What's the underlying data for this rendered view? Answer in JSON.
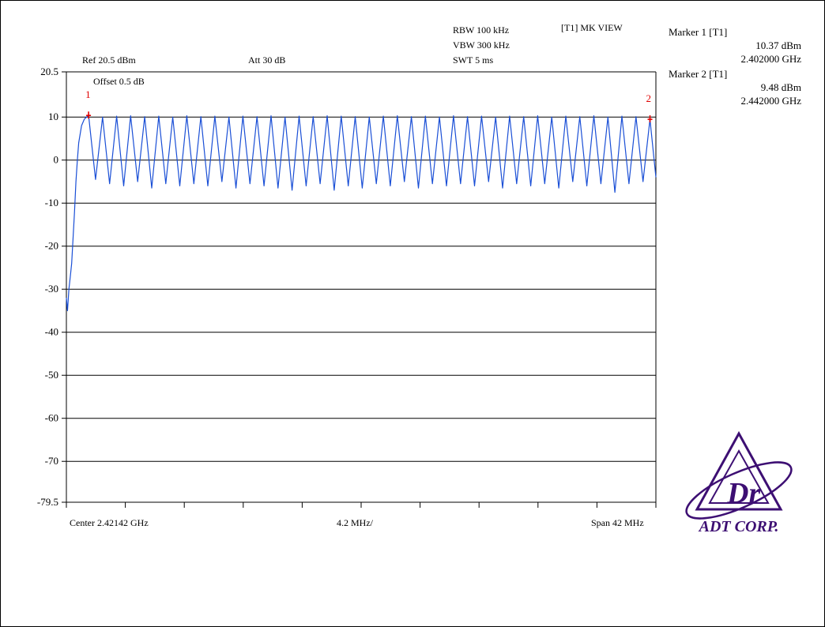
{
  "header": {
    "ref": "Ref 20.5 dBm",
    "att": "Att  30 dB",
    "rbw": "RBW 100 kHz",
    "vbw": "VBW 300 kHz",
    "swt": "SWT 5 ms",
    "mode": "[T1] MK VIEW",
    "offset": "Offset 0.5 dB"
  },
  "markers": [
    {
      "title": "Marker 1 [T1]",
      "level": "10.37 dBm",
      "freq": "2.402000 GHz",
      "id": "1",
      "x_mhz": 2402.0,
      "level_dbm": 10.37
    },
    {
      "title": "Marker 2 [T1]",
      "level": "9.48 dBm",
      "freq": "2.442000 GHz",
      "id": "2",
      "x_mhz": 2442.0,
      "level_dbm": 9.48
    }
  ],
  "footer": {
    "center": "Center 2.42142 GHz",
    "div": "4.2 MHz/",
    "span": "Span 42 MHz"
  },
  "logo": {
    "text": "ADT CORP.",
    "color": "#3d0f73"
  },
  "colors": {
    "trace": "#1a4fd6",
    "marker": "#e00000",
    "grid": "#000000"
  },
  "chart_data": {
    "type": "line",
    "title": "",
    "xlabel": "",
    "ylabel": "",
    "x_unit": "MHz",
    "y_unit": "dBm",
    "xlim": [
      2400.42,
      2442.42
    ],
    "ylim": [
      -79.5,
      20.5
    ],
    "yticks": [
      "20.5",
      "10",
      "0",
      "-10",
      "-20",
      "-30",
      "-40",
      "-50",
      "-60",
      "-70",
      "-79.5"
    ],
    "ytick_values": [
      20.5,
      10,
      0,
      -10,
      -20,
      -30,
      -40,
      -50,
      -60,
      -70,
      -79.5
    ],
    "grid": true,
    "series": [
      {
        "description": "Bluetooth hopping channels, 1 MHz spacing, peaks near 10 dBm, troughs near -5 dBm",
        "x": [
          2400.42,
          2400.5,
          2400.6,
          2400.7,
          2400.8,
          2400.9,
          2401.0,
          2401.1,
          2401.2,
          2401.3,
          2401.5,
          2401.7,
          2402.0,
          2402.5,
          2403.0,
          2403.5,
          2404.0,
          2404.5,
          2405.0,
          2405.5,
          2406.0,
          2406.5,
          2407.0,
          2407.5,
          2408.0,
          2408.5,
          2409.0,
          2409.5,
          2410.0,
          2410.5,
          2411.0,
          2411.5,
          2412.0,
          2412.5,
          2413.0,
          2413.5,
          2414.0,
          2414.5,
          2415.0,
          2415.5,
          2416.0,
          2416.5,
          2417.0,
          2417.5,
          2418.0,
          2418.5,
          2419.0,
          2419.5,
          2420.0,
          2420.5,
          2421.0,
          2421.5,
          2422.0,
          2422.5,
          2423.0,
          2423.5,
          2424.0,
          2424.5,
          2425.0,
          2425.5,
          2426.0,
          2426.5,
          2427.0,
          2427.5,
          2428.0,
          2428.5,
          2429.0,
          2429.5,
          2430.0,
          2430.5,
          2431.0,
          2431.5,
          2432.0,
          2432.5,
          2433.0,
          2433.5,
          2434.0,
          2434.5,
          2435.0,
          2435.5,
          2436.0,
          2436.5,
          2437.0,
          2437.5,
          2438.0,
          2438.5,
          2439.0,
          2439.5,
          2440.0,
          2440.5,
          2441.0,
          2441.5,
          2442.0,
          2442.42
        ],
        "y": [
          -32,
          -35,
          -30,
          -27,
          -24,
          -18,
          -12,
          -5,
          0,
          4,
          8,
          9.5,
          10.4,
          -4.5,
          10.0,
          -5.5,
          10.2,
          -6.0,
          10.3,
          -5.0,
          10.1,
          -6.5,
          10.2,
          -5.5,
          10.0,
          -6.0,
          10.3,
          -5.5,
          10.1,
          -6.0,
          10.2,
          -5.0,
          10.0,
          -6.5,
          10.2,
          -5.5,
          10.1,
          -6.0,
          10.3,
          -6.5,
          10.0,
          -7.0,
          10.2,
          -6.0,
          10.1,
          -5.5,
          10.3,
          -7.0,
          10.2,
          -6.0,
          10.1,
          -6.5,
          10.0,
          -5.5,
          10.2,
          -6.0,
          10.3,
          -5.0,
          10.1,
          -6.5,
          10.2,
          -5.5,
          10.0,
          -6.0,
          10.3,
          -5.5,
          10.1,
          -6.0,
          10.2,
          -5.0,
          10.0,
          -6.5,
          10.2,
          -5.5,
          10.1,
          -6.0,
          10.3,
          -5.5,
          10.0,
          -6.5,
          10.2,
          -5.0,
          10.1,
          -6.0,
          10.3,
          -5.5,
          10.0,
          -7.5,
          10.2,
          -5.5,
          10.1,
          -5.0,
          9.5,
          -4.0
        ]
      }
    ]
  }
}
